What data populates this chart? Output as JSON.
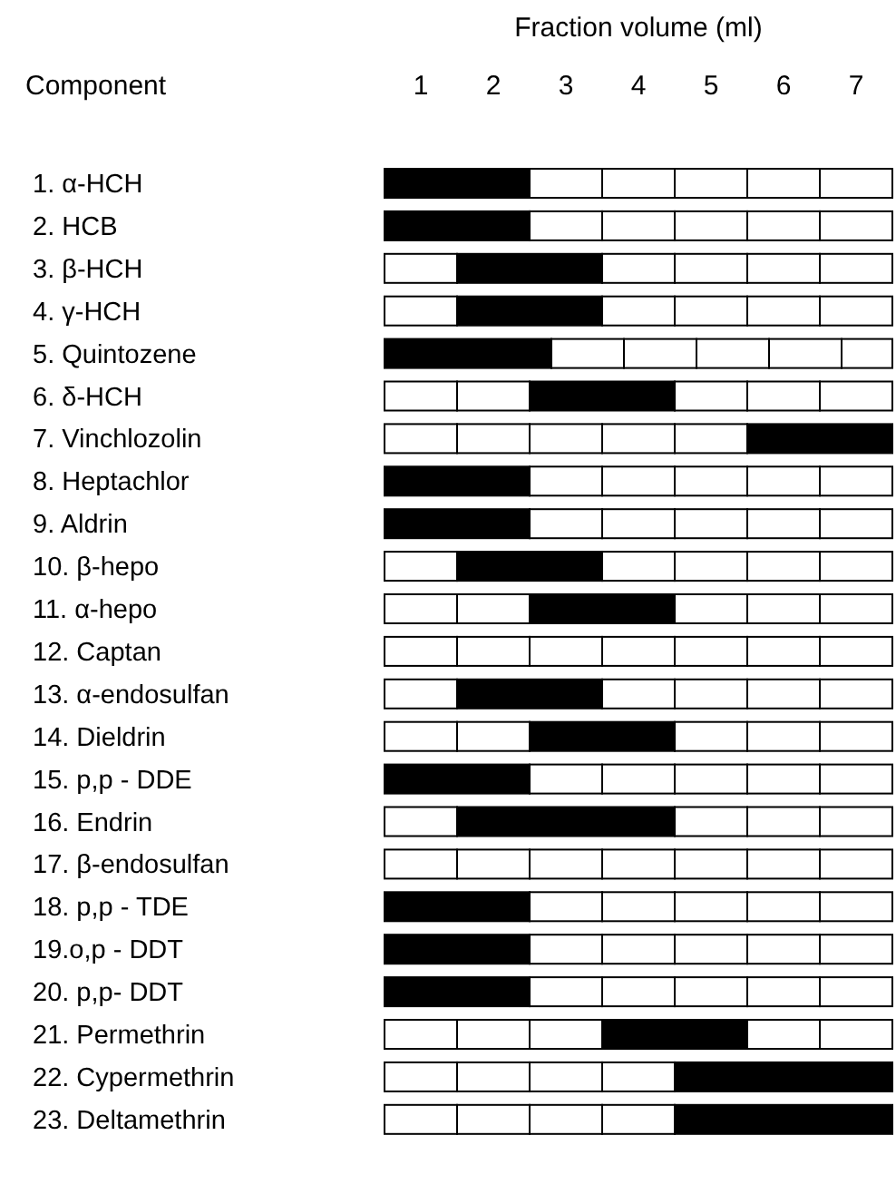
{
  "chart_data": {
    "type": "bar",
    "orientation": "horizontal",
    "stacked": true,
    "xlabel": "Fraction volume (ml)",
    "ylabel": "Component",
    "categories": [
      "1. α-HCH",
      "2. HCB",
      "3. β-HCH",
      "4. γ-HCH",
      "5. Quintozene",
      "6. δ-HCH",
      "7. Vinchlozolin",
      "8. Heptachlor",
      "9. Aldrin",
      "10. β-hepo",
      "11. α-hepo",
      "12. Captan",
      "13. α-endosulfan",
      "14. Dieldrin",
      "15. p,p - DDE",
      "16. Endrin",
      "17. β-endosulfan",
      "18. p,p - TDE",
      "19.o,p - DDT",
      "20. p,p- DDT",
      "21. Permethrin",
      "22. Cypermethrin",
      "23. Deltamethrin"
    ],
    "series": [
      {
        "values": [
          2,
          2,
          1,
          1,
          2.3,
          1,
          1,
          2,
          2,
          1,
          1,
          1,
          1,
          1,
          2,
          1,
          1,
          2,
          2,
          2,
          1,
          1,
          1
        ],
        "colors": [
          "#000000",
          "#000000",
          "#ffffff",
          "#ffffff",
          "#000000",
          "#ffffff",
          "#ffffff",
          "#000000",
          "#000000",
          "#ffffff",
          "#ffffff",
          "#ffffff",
          "#ffffff",
          "#ffffff",
          "#000000",
          "#ffffff",
          "#ffffff",
          "#000000",
          "#000000",
          "#000000",
          "#ffffff",
          "#ffffff",
          "#ffffff"
        ]
      },
      {
        "values": [
          1,
          1,
          2,
          2,
          1,
          1,
          1,
          1,
          1,
          2,
          1,
          1,
          2,
          1,
          1,
          3,
          1,
          1,
          1,
          1,
          1,
          1,
          1
        ],
        "colors": [
          "#ffffff",
          "#ffffff",
          "#000000",
          "#000000",
          "#ffffff",
          "#ffffff",
          "#ffffff",
          "#ffffff",
          "#ffffff",
          "#000000",
          "#ffffff",
          "#ffffff",
          "#000000",
          "#ffffff",
          "#ffffff",
          "#000000",
          "#ffffff",
          "#ffffff",
          "#ffffff",
          "#ffffff",
          "#ffffff",
          "#ffffff",
          "#ffffff"
        ]
      },
      {
        "values": [
          1,
          1,
          1,
          1,
          1,
          2,
          1,
          1,
          1,
          1,
          2,
          1,
          1,
          2,
          1,
          1,
          1,
          1,
          1,
          1,
          1,
          1,
          1
        ],
        "colors": [
          "#ffffff",
          "#ffffff",
          "#ffffff",
          "#ffffff",
          "#ffffff",
          "#000000",
          "#ffffff",
          "#ffffff",
          "#ffffff",
          "#ffffff",
          "#000000",
          "#ffffff",
          "#ffffff",
          "#000000",
          "#ffffff",
          "#ffffff",
          "#ffffff",
          "#ffffff",
          "#ffffff",
          "#ffffff",
          "#ffffff",
          "#ffffff",
          "#ffffff"
        ]
      },
      {
        "values": [
          1,
          1,
          1,
          1,
          1,
          1,
          1,
          1,
          1,
          1,
          1,
          1,
          1,
          1,
          1,
          1,
          1,
          1,
          1,
          1,
          2,
          1,
          1
        ],
        "colors": [
          "#ffffff",
          "#ffffff",
          "#ffffff",
          "#ffffff",
          "#ffffff",
          "#ffffff",
          "#ffffff",
          "#ffffff",
          "#ffffff",
          "#ffffff",
          "#ffffff",
          "#ffffff",
          "#ffffff",
          "#ffffff",
          "#ffffff",
          "#ffffff",
          "#ffffff",
          "#ffffff",
          "#ffffff",
          "#ffffff",
          "#000000",
          "#ffffff",
          "#ffffff"
        ]
      },
      {
        "values": [
          1,
          1,
          1,
          1,
          1,
          1,
          1,
          1,
          1,
          1,
          1,
          1,
          1,
          1,
          1,
          1,
          1,
          1,
          1,
          1,
          1,
          3,
          3
        ],
        "colors": [
          "#ffffff",
          "#ffffff",
          "#ffffff",
          "#ffffff",
          "#ffffff",
          "#ffffff",
          "#ffffff",
          "#ffffff",
          "#ffffff",
          "#ffffff",
          "#ffffff",
          "#ffffff",
          "#ffffff",
          "#ffffff",
          "#ffffff",
          "#ffffff",
          "#ffffff",
          "#ffffff",
          "#ffffff",
          "#ffffff",
          "#ffffff",
          "#000000",
          "#000000"
        ]
      },
      {
        "values": [
          1,
          1,
          1,
          1,
          0.7,
          1,
          2,
          1,
          1,
          1,
          1,
          1,
          1,
          1,
          1,
          null,
          1,
          1,
          1,
          1,
          1,
          null,
          null
        ],
        "colors": [
          "#ffffff",
          "#ffffff",
          "#ffffff",
          "#ffffff",
          "#ffffff",
          "#ffffff",
          "#000000",
          "#ffffff",
          "#ffffff",
          "#ffffff",
          "#ffffff",
          "#ffffff",
          "#ffffff",
          "#ffffff",
          "#ffffff",
          "#ffffff",
          "#ffffff",
          "#ffffff",
          "#ffffff",
          "#ffffff",
          "#ffffff",
          "#ffffff",
          "#ffffff"
        ]
      },
      {
        "values": [
          null,
          null,
          null,
          null,
          null,
          null,
          null,
          null,
          null,
          null,
          null,
          1,
          null,
          null,
          null,
          null,
          1,
          null,
          null,
          null,
          null,
          null,
          null
        ],
        "colors": [
          "#ffffff",
          "#ffffff",
          "#ffffff",
          "#ffffff",
          "#ffffff",
          "#ffffff",
          "#ffffff",
          "#ffffff",
          "#ffffff",
          "#ffffff",
          "#ffffff",
          "#ffffff",
          "#ffffff",
          "#ffffff",
          "#ffffff",
          "#ffffff",
          "#ffffff",
          "#ffffff",
          "#ffffff",
          "#ffffff",
          "#ffffff",
          "#ffffff",
          "#ffffff"
        ]
      }
    ],
    "xlim": [
      0,
      7
    ],
    "xticks": [
      {
        "value": 0.5,
        "label": "1"
      },
      {
        "value": 1.5,
        "label": "2"
      },
      {
        "value": 2.5,
        "label": "3"
      },
      {
        "value": 3.5,
        "label": "4"
      },
      {
        "value": 4.5,
        "label": "5"
      },
      {
        "value": 5.5,
        "label": "6"
      },
      {
        "value": 6.5,
        "label": "7"
      }
    ]
  }
}
